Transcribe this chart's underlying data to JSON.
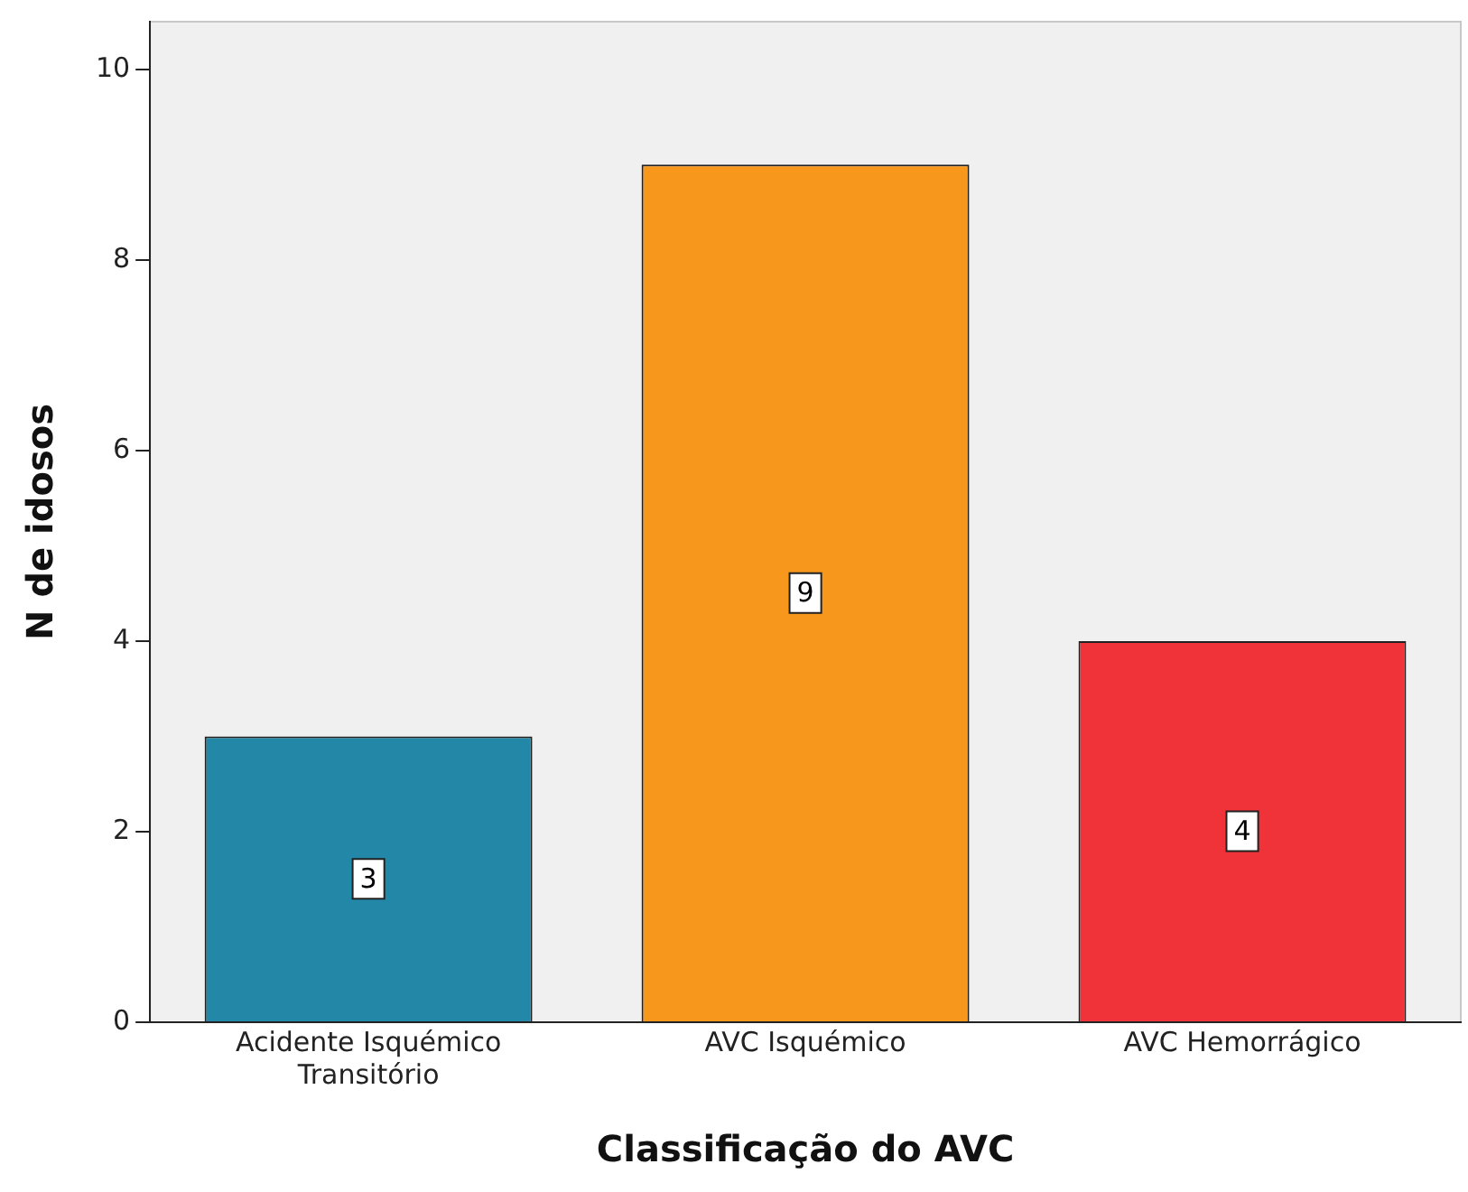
{
  "chart_data": {
    "type": "bar",
    "xlabel": "Classificação do AVC",
    "ylabel": "N de idosos",
    "categories": [
      "Acidente Isquémico Transitório",
      "AVC Isquémico",
      "AVC Hemorrágico"
    ],
    "values": [
      3,
      9,
      4
    ],
    "colors": [
      "#2387a8",
      "#f7981d",
      "#ef3339"
    ],
    "ylim": [
      0,
      10.5
    ],
    "yticks": [
      0,
      2,
      4,
      6,
      8,
      10
    ],
    "grid": false,
    "legend": false,
    "data_labels": true
  }
}
